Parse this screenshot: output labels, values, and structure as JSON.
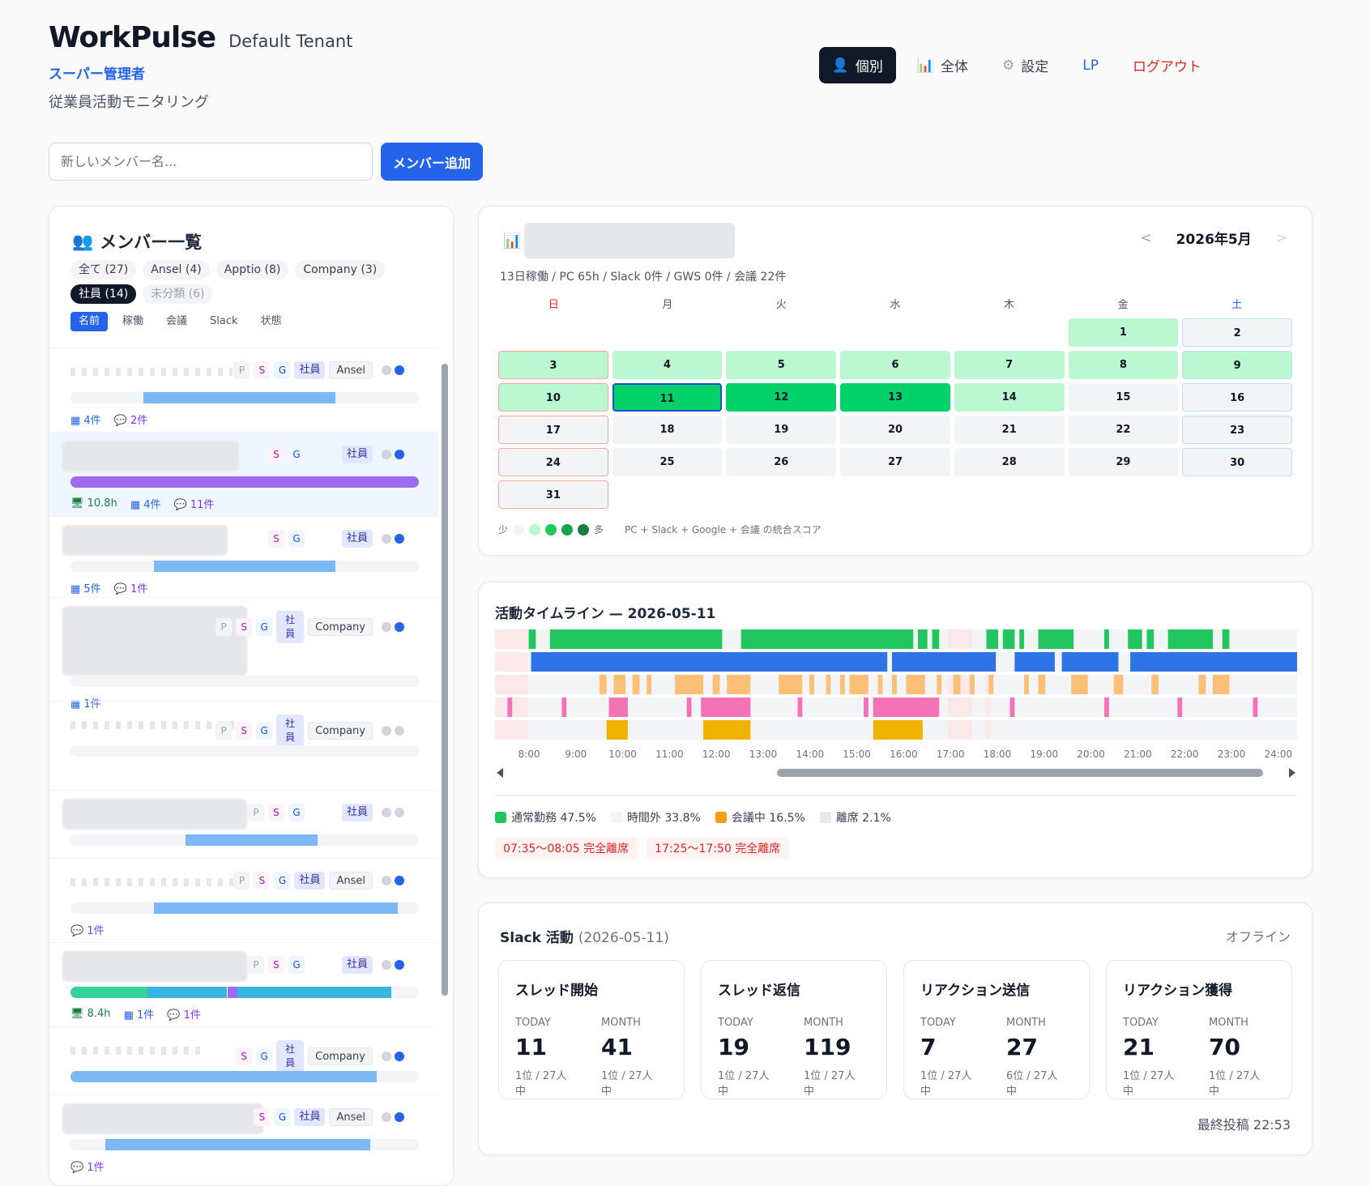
{
  "header": {
    "app_title": "WorkPulse",
    "tenant": "Default Tenant",
    "role": "スーパー管理者",
    "subtitle": "従業員活動モニタリング"
  },
  "nav": {
    "individual": "個別",
    "all": "全体",
    "settings": "設定",
    "lp": "LP",
    "logout": "ログアウト"
  },
  "add_member": {
    "placeholder": "新しいメンバー名...",
    "button": "メンバー追加"
  },
  "member_panel": {
    "title": "メンバー一覧",
    "filters": [
      "全て (27)",
      "Ansel (4)",
      "Apptio (8)",
      "Company (3)",
      "社員 (14)",
      "未分類 (6)"
    ],
    "active_filter": "社員 (14)",
    "sorts": [
      "名前",
      "稼働",
      "会議",
      "Slack",
      "状態"
    ],
    "active_sort": "名前",
    "members": [
      {
        "tags": [
          "P",
          "S",
          "G"
        ],
        "type": "社員",
        "org": "Ansel",
        "status": [
          false,
          true
        ],
        "bar": [
          {
            "pct": 55,
            "color": "#7db7f5",
            "offset": 21
          }
        ],
        "meta": {
          "cal": "4件",
          "msg": "2件"
        }
      },
      {
        "tags": [
          "S",
          "G"
        ],
        "type": "社員",
        "org": "",
        "status": [
          false,
          true
        ],
        "selected": true,
        "bar": [
          {
            "pct": 100,
            "color": "#a06af0",
            "offset": 0
          }
        ],
        "meta": {
          "pc": "10.8h",
          "cal": "4件",
          "msg": "11件"
        }
      },
      {
        "tags": [
          "S",
          "G"
        ],
        "type": "社員",
        "org": "",
        "status": [
          false,
          true
        ],
        "bar": [
          {
            "pct": 52,
            "color": "#7db7f5",
            "offset": 24
          }
        ],
        "meta": {
          "cal": "5件",
          "msg": "1件"
        }
      },
      {
        "tags": [
          "P",
          "S",
          "G"
        ],
        "type": "社員",
        "org": "Company",
        "status": [
          false,
          true
        ],
        "bar": [],
        "meta": {
          "cal": "1件"
        }
      },
      {
        "tags": [
          "P",
          "S",
          "G"
        ],
        "type": "社員",
        "org": "Company",
        "status": [
          false,
          false
        ],
        "bar": [],
        "meta": {}
      },
      {
        "tags": [
          "P",
          "S",
          "G"
        ],
        "type": "社員",
        "org": "",
        "status": [
          false,
          false
        ],
        "bar": [
          {
            "pct": 38,
            "color": "#7db7f5",
            "offset": 33
          }
        ],
        "meta": {}
      },
      {
        "tags": [
          "P",
          "S",
          "G"
        ],
        "type": "社員",
        "org": "Ansel",
        "status": [
          false,
          true
        ],
        "bar": [
          {
            "pct": 70,
            "color": "#7db7f5",
            "offset": 24
          }
        ],
        "meta": {
          "msg": "1件"
        }
      },
      {
        "tags": [
          "P",
          "S",
          "G"
        ],
        "type": "社員",
        "org": "",
        "status": [
          false,
          true
        ],
        "bar": [
          {
            "pct": 92,
            "color": "#37b6e0",
            "offset": 0
          }
        ],
        "meta": {
          "pc": "8.4h",
          "cal": "1件",
          "msg": "1件"
        }
      },
      {
        "tags": [
          "S",
          "G"
        ],
        "type": "社員",
        "org": "Company",
        "status": [
          false,
          true
        ],
        "bar": [
          {
            "pct": 88,
            "color": "#7db7f5",
            "offset": 0
          }
        ],
        "meta": {}
      },
      {
        "tags": [
          "S",
          "G"
        ],
        "type": "社員",
        "org": "Ansel",
        "status": [
          false,
          true
        ],
        "bar": [
          {
            "pct": 76,
            "color": "#7db7f5",
            "offset": 10
          }
        ],
        "meta": {
          "msg": "1件"
        }
      }
    ]
  },
  "calendar": {
    "summary": "13日稼働 / PC 65h / Slack 0件 / GWS 0件 / 会議 22件",
    "month": "2026年5月",
    "prev": "<",
    "next": ">",
    "weekdays": [
      "日",
      "月",
      "火",
      "水",
      "木",
      "金",
      "土"
    ],
    "leading_blanks": 5,
    "days": [
      {
        "d": "1",
        "l": 1
      },
      {
        "d": "2",
        "l": 0
      },
      {
        "d": "3",
        "l": 1
      },
      {
        "d": "4",
        "l": 1
      },
      {
        "d": "5",
        "l": 1
      },
      {
        "d": "6",
        "l": 1
      },
      {
        "d": "7",
        "l": 1
      },
      {
        "d": "8",
        "l": 1
      },
      {
        "d": "9",
        "l": 1
      },
      {
        "d": "10",
        "l": 1
      },
      {
        "d": "11",
        "l": 3,
        "today": true
      },
      {
        "d": "12",
        "l": 3
      },
      {
        "d": "13",
        "l": 3
      },
      {
        "d": "14",
        "l": 1
      },
      {
        "d": "15",
        "l": 0
      },
      {
        "d": "16",
        "l": 0
      },
      {
        "d": "17",
        "l": 0
      },
      {
        "d": "18",
        "l": 0
      },
      {
        "d": "19",
        "l": 0
      },
      {
        "d": "20",
        "l": 0
      },
      {
        "d": "21",
        "l": 0
      },
      {
        "d": "22",
        "l": 0
      },
      {
        "d": "23",
        "l": 0
      },
      {
        "d": "24",
        "l": 0
      },
      {
        "d": "25",
        "l": 0
      },
      {
        "d": "26",
        "l": 0
      },
      {
        "d": "27",
        "l": 0
      },
      {
        "d": "28",
        "l": 0
      },
      {
        "d": "29",
        "l": 0
      },
      {
        "d": "30",
        "l": 0
      },
      {
        "d": "31",
        "l": 0
      }
    ],
    "legend_low": "少",
    "legend_high": "多",
    "legend_note": "PC + Slack + Google + 会議 の統合スコア",
    "legend_colors": [
      "#f3f4f6",
      "#bbf7d0",
      "#22c55e",
      "#16a34a",
      "#15803d"
    ]
  },
  "timeline": {
    "title": "活動タイムライン — 2026-05-11",
    "hours": [
      "8:00",
      "9:00",
      "10:00",
      "11:00",
      "12:00",
      "13:00",
      "14:00",
      "15:00",
      "16:00",
      "17:00",
      "18:00",
      "19:00",
      "20:00",
      "21:00",
      "22:00",
      "23:00",
      "24:00"
    ],
    "rows": [
      {
        "color": "#22c55e",
        "segments": [
          [
            0.8,
            0.95
          ],
          [
            1.25,
            4.9
          ],
          [
            5.3,
            8.95
          ],
          [
            9.05,
            9.25
          ],
          [
            9.35,
            9.5
          ],
          [
            10.5,
            10.75
          ],
          [
            10.85,
            11.1
          ],
          [
            11.2,
            11.3
          ],
          [
            11.6,
            12.35
          ],
          [
            13.0,
            13.1
          ],
          [
            13.5,
            13.8
          ],
          [
            13.9,
            14.05
          ],
          [
            14.35,
            15.3
          ],
          [
            15.5,
            15.65
          ]
        ]
      },
      {
        "color": "#2f74e6",
        "segments": [
          [
            0.85,
            8.4
          ],
          [
            8.5,
            10.7
          ],
          [
            11.1,
            11.95
          ],
          [
            12.1,
            13.3
          ],
          [
            13.55,
            17.75
          ]
        ]
      },
      {
        "color": "#fbbf77",
        "segments": [
          [
            2.3,
            2.45
          ],
          [
            2.6,
            2.85
          ],
          [
            3.0,
            3.15
          ],
          [
            3.3,
            3.4
          ],
          [
            3.9,
            4.5
          ],
          [
            4.7,
            4.85
          ],
          [
            5.0,
            5.5
          ],
          [
            6.1,
            6.6
          ],
          [
            6.75,
            6.85
          ],
          [
            7.1,
            7.2
          ],
          [
            7.4,
            7.5
          ],
          [
            7.6,
            8.0
          ],
          [
            8.2,
            8.3
          ],
          [
            8.5,
            8.6
          ],
          [
            8.8,
            9.2
          ],
          [
            9.45,
            9.55
          ],
          [
            9.8,
            9.95
          ],
          [
            10.15,
            10.25
          ],
          [
            10.55,
            10.65
          ],
          [
            11.3,
            11.4
          ],
          [
            11.6,
            11.75
          ],
          [
            12.3,
            12.65
          ],
          [
            13.2,
            13.4
          ],
          [
            14.0,
            14.15
          ],
          [
            15.0,
            15.15
          ],
          [
            15.3,
            15.65
          ]
        ]
      },
      {
        "color": "#f472b6",
        "segments": [
          [
            0.35,
            0.45
          ],
          [
            1.5,
            1.6
          ],
          [
            2.5,
            2.9
          ],
          [
            4.15,
            4.25
          ],
          [
            4.45,
            5.5
          ],
          [
            6.5,
            6.6
          ],
          [
            7.9,
            8.0
          ],
          [
            8.1,
            9.5
          ],
          [
            11.0,
            11.1
          ],
          [
            13.0,
            13.1
          ],
          [
            14.55,
            14.65
          ],
          [
            16.15,
            16.25
          ]
        ]
      },
      {
        "color": "#f0b200",
        "segments": [
          [
            2.45,
            2.9
          ],
          [
            4.5,
            5.5
          ],
          [
            8.1,
            9.15
          ]
        ]
      }
    ],
    "legend": [
      {
        "label": "通常勤務 47.5%",
        "color": "#22c55e"
      },
      {
        "label": "時間外 33.8%",
        "color": "#f3f4f6"
      },
      {
        "label": "会議中 16.5%",
        "color": "#f59e0b"
      },
      {
        "label": "離席 2.1%",
        "color": "#e5e7eb"
      }
    ],
    "away": [
      "07:35〜08:05 完全離席",
      "17:25〜17:50 完全離席"
    ]
  },
  "slack": {
    "title": "Slack 活動",
    "date": "(2026-05-11)",
    "status": "オフライン",
    "today_label": "TODAY",
    "month_label": "MONTH",
    "cards": [
      {
        "title": "スレッド開始",
        "today": "11",
        "month": "41",
        "today_rank": "1位 / 27人中",
        "month_rank": "1位 / 27人中"
      },
      {
        "title": "スレッド返信",
        "today": "19",
        "month": "119",
        "today_rank": "1位 / 27人中",
        "month_rank": "1位 / 27人中"
      },
      {
        "title": "リアクション送信",
        "today": "7",
        "month": "27",
        "today_rank": "1位 / 27人中",
        "month_rank": "6位 / 27人中"
      },
      {
        "title": "リアクション獲得",
        "today": "21",
        "month": "70",
        "today_rank": "1位 / 27人中",
        "month_rank": "1位 / 27人中"
      }
    ],
    "last_post": "最終投稿 22:53"
  }
}
